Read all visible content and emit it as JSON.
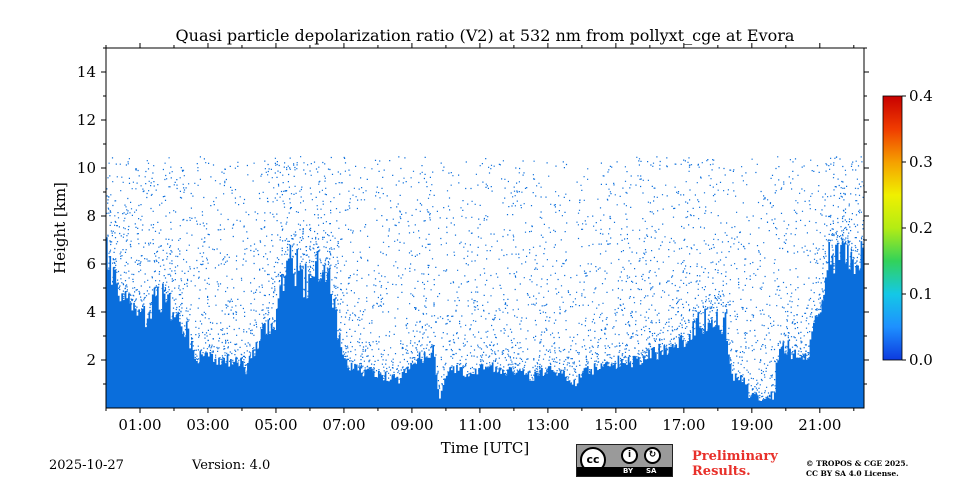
{
  "chart_data": {
    "type": "heatmap",
    "title": "Quasi particle depolarization ratio (V2) at 532 nm from pollyxt_cge at Evora",
    "xlabel": "Time [UTC]",
    "ylabel": "Height [km]",
    "x_tick_labels": [
      "01:00",
      "03:00",
      "05:00",
      "07:00",
      "09:00",
      "11:00",
      "13:00",
      "15:00",
      "17:00",
      "19:00",
      "21:00"
    ],
    "x_tick_hours": [
      1,
      3,
      5,
      7,
      9,
      11,
      13,
      15,
      17,
      19,
      21
    ],
    "xlim_hours": [
      0,
      22.3
    ],
    "y_ticks": [
      2,
      4,
      6,
      8,
      10,
      12,
      14
    ],
    "ylim": [
      0,
      15
    ],
    "colorbar": {
      "ticks": [
        "0.0",
        "0.1",
        "0.2",
        "0.3",
        "0.4"
      ],
      "tick_values": [
        0.0,
        0.1,
        0.2,
        0.3,
        0.4
      ],
      "range": [
        0.0,
        0.4
      ],
      "colors": [
        "#0d3adf",
        "#1e90ff",
        "#14c8e6",
        "#32d25a",
        "#b4ec14",
        "#f0f000",
        "#f5a000",
        "#f03c00",
        "#c80000"
      ]
    },
    "signal_color": "#0a6edc",
    "dominant_value": 0.02,
    "profile": {
      "description_units": "hour, height_km",
      "hours": [
        0.0,
        0.3,
        0.6,
        0.9,
        1.2,
        1.5,
        1.8,
        2.0,
        2.3,
        2.6,
        3.0,
        3.5,
        3.9,
        4.1,
        4.3,
        4.7,
        5.0,
        5.3,
        5.6,
        6.0,
        6.3,
        6.6,
        6.8,
        7.0,
        7.3,
        7.7,
        8.0,
        8.3,
        8.6,
        9.0,
        9.3,
        9.6,
        9.8,
        10.0,
        10.2,
        10.5,
        11.0,
        11.5,
        12.0,
        12.5,
        13.0,
        13.4,
        13.8,
        14.0,
        14.3,
        14.7,
        15.0,
        15.5,
        16.0,
        16.5,
        17.0,
        17.3,
        17.6,
        17.9,
        18.2,
        18.4,
        18.6,
        18.8,
        19.0,
        19.2,
        19.5,
        19.8,
        20.0,
        20.3,
        20.6,
        20.9,
        21.2,
        21.5,
        21.8,
        22.1,
        22.3
      ],
      "top_km": [
        6.8,
        5.2,
        4.6,
        4.2,
        3.9,
        4.8,
        4.4,
        3.6,
        3.4,
        2.1,
        2.0,
        2.0,
        1.9,
        1.6,
        2.2,
        3.4,
        3.8,
        6.4,
        5.8,
        5.0,
        6.2,
        5.4,
        3.0,
        1.9,
        1.6,
        1.5,
        1.4,
        1.3,
        1.2,
        2.0,
        2.2,
        2.5,
        0.4,
        1.4,
        1.6,
        1.5,
        1.6,
        1.7,
        1.5,
        1.3,
        1.6,
        1.4,
        1.0,
        1.5,
        1.6,
        1.7,
        1.9,
        2.0,
        2.2,
        2.5,
        2.8,
        3.4,
        3.7,
        3.6,
        3.6,
        1.3,
        1.2,
        1.1,
        1.0,
        0.3,
        0.4,
        2.6,
        2.5,
        2.2,
        2.0,
        4.0,
        6.0,
        6.4,
        6.0,
        6.5,
        6.5
      ],
      "gaps_hours": [
        [
          18.9,
          19.7
        ]
      ]
    }
  },
  "footer": {
    "date": "2025-10-27",
    "version": "Version: 4.0",
    "preliminary_line1": "Preliminary",
    "preliminary_line2": "Results.",
    "copyright_line1": "© TROPOS & CGE 2025.",
    "copyright_line2": "CC BY SA 4.0 License.",
    "license_cc": "cc",
    "license_by": "BY",
    "license_sa": "SA"
  }
}
